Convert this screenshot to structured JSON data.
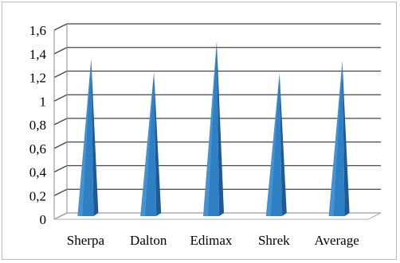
{
  "chart_data": {
    "type": "bar",
    "shape": "cone",
    "categories": [
      "Sherpa",
      "Dalton",
      "Edimax",
      "Shrek",
      "Average"
    ],
    "values": [
      1.33,
      1.22,
      1.48,
      1.21,
      1.31
    ],
    "title": "",
    "xlabel": "",
    "ylabel": "",
    "ylim": [
      0,
      1.6
    ],
    "yticks": [
      "0",
      "0,2",
      "0,4",
      "0,6",
      "0,8",
      "1",
      "1,2",
      "1,4",
      "1,6"
    ],
    "grid": true,
    "legend": "none",
    "colors": {
      "bar_front": "#2f7fc4",
      "bar_side": "#1f5a94",
      "bar_light": "#5aa2dc",
      "gridline": "#444444",
      "floor": "#b0b0b0",
      "frame": "#bdbdbd"
    }
  }
}
